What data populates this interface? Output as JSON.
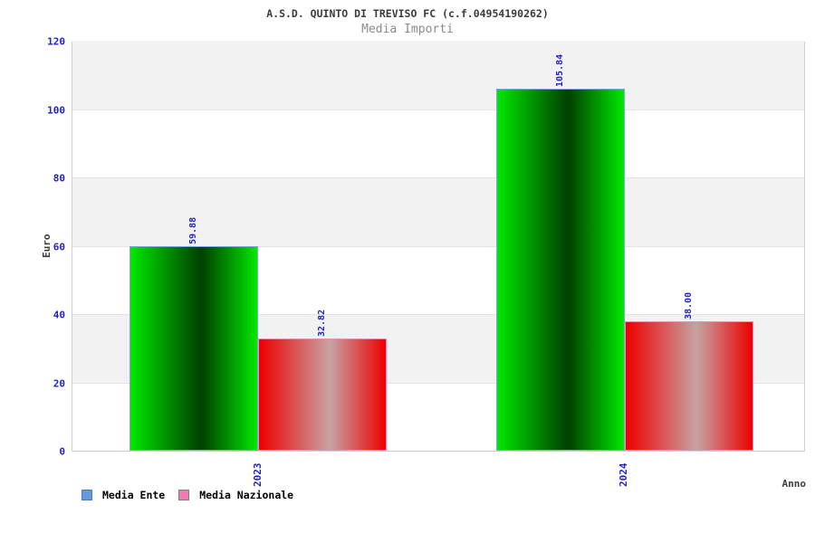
{
  "header": {
    "title": "A.S.D. QUINTO DI TREVISO FC (c.f.04954190262)",
    "subtitle": "Media Importi"
  },
  "chart_data": {
    "type": "bar",
    "title": "A.S.D. QUINTO DI TREVISO FC (c.f.04954190262)",
    "subtitle": "Media Importi",
    "xlabel": "Anno",
    "ylabel": "Euro",
    "ylim": [
      0,
      120
    ],
    "yticks": [
      0,
      20,
      40,
      60,
      80,
      100,
      120
    ],
    "categories": [
      "2023",
      "2024"
    ],
    "series": [
      {
        "name": "Media Ente",
        "values": [
          59.88,
          105.84
        ],
        "value_labels": [
          "59.88",
          "105.84"
        ],
        "fill_edge": "#00e800",
        "fill_mid": "#003f00",
        "bar_border": "#7aa7dd",
        "legend_swatch": "#6699dd",
        "legend_swatch_border": "#4d7ab8"
      },
      {
        "name": "Media Nazionale",
        "values": [
          32.82,
          38.0
        ],
        "value_labels": [
          "32.82",
          "38.00"
        ],
        "fill_edge": "#ee0000",
        "fill_mid": "#c7a2a2",
        "bar_border": "#f08cbe",
        "legend_swatch": "#ee7cb0",
        "legend_swatch_border": "#7d7d7d"
      }
    ],
    "grid": "horizontal-bands",
    "legend_position": "bottom-left",
    "colors": {
      "tick_label": "#2222cc",
      "value_label": "#2222cc",
      "band_gray": "#f2f2f2",
      "band_white": "#ffffff",
      "band_line": "#e4e4e4",
      "plot_border": "#cfcfcf",
      "title": "#3c3c3c",
      "subtitle": "#8b8b8b",
      "axis_title": "#3c3c3c",
      "legend_text": "#000000"
    }
  }
}
